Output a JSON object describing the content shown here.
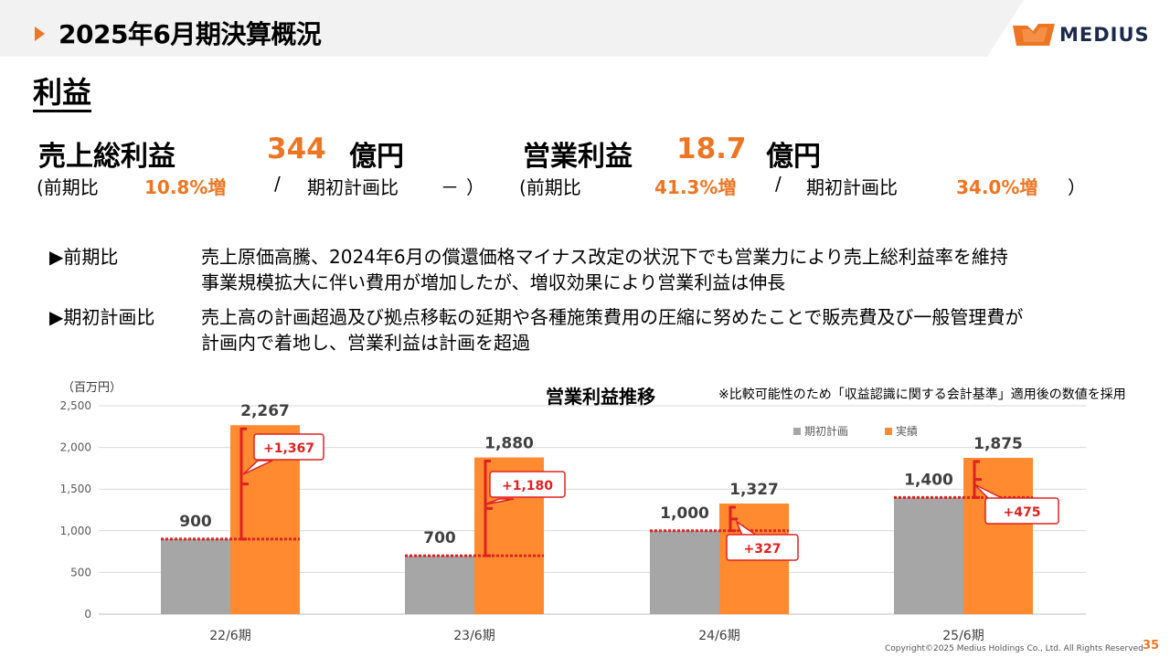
{
  "header": {
    "title": "2025年6月期決算概況",
    "logo_text": "MEDIUS"
  },
  "section_title": "利益",
  "kpis": {
    "gross_profit": {
      "label": "売上総利益",
      "value": "344",
      "unit": "億円",
      "sub_prefix": "(前期比",
      "yoy": "10.8%増",
      "sep": "/",
      "plan_label": "期初計画比",
      "plan_value": "－",
      "close": "）"
    },
    "operating_profit": {
      "label": "営業利益",
      "value": "18.7",
      "unit": "億円",
      "sub_prefix": "(前期比",
      "yoy": "41.3%増",
      "sep": "/",
      "plan_label": "期初計画比",
      "plan_value": "34.0%増",
      "close": "）"
    }
  },
  "bullets": [
    {
      "label": "▶前期比",
      "lines": [
        "売上原価高騰、2024年6月の償還価格マイナス改定の状況下でも営業力により売上総利益率を維持",
        "事業規模拡大に伴い費用が増加したが、増収効果により営業利益は伸長"
      ]
    },
    {
      "label": "▶期初計画比",
      "lines": [
        "売上高の計画超過及び拠点移転の延期や各種施策費用の圧縮に努めたことで販売費及び一般管理費が",
        "計画内で着地し、営業利益は計画を超過"
      ]
    }
  ],
  "chart_title": "営業利益推移",
  "chart_note": "※比較可能性のため「収益認識に関する会計基準」適用後の数値を採用",
  "chart_data": {
    "type": "bar",
    "unit_label": "（百万円）",
    "categories": [
      "22/6期",
      "23/6期",
      "24/6期",
      "25/6期"
    ],
    "series": [
      {
        "name": "期初計画",
        "values": [
          900,
          700,
          1000,
          1400
        ],
        "labels": [
          "900",
          "700",
          "1,000",
          "1,400"
        ],
        "color": "#a6a6a6"
      },
      {
        "name": "実績",
        "values": [
          2267,
          1880,
          1327,
          1875
        ],
        "labels": [
          "2,267",
          "1,880",
          "1,327",
          "1,875"
        ],
        "color": "#ff8a2f"
      }
    ],
    "differences": [
      "+1,367",
      "+1,180",
      "+327",
      "+475"
    ],
    "ylim": [
      0,
      2500
    ],
    "yticks": [
      0,
      500,
      1000,
      1500,
      2000,
      2500
    ],
    "ytick_labels": [
      "0",
      "500",
      "1,000",
      "1,500",
      "2,000",
      "2,500"
    ],
    "grid": true,
    "legend_position": "top-right",
    "diff_color": "#e02020"
  },
  "footer": {
    "copyright": "Copyright©2025 Medius Holdings Co., Ltd. All Rights Reserved",
    "page": "35"
  }
}
